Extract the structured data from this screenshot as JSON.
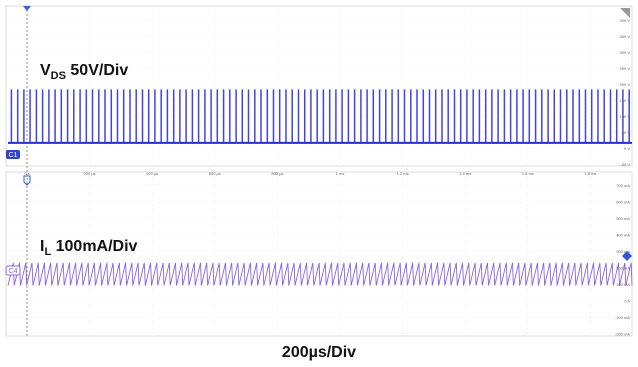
{
  "captions": {
    "vds_main": "V",
    "vds_sub": "DS",
    "vds_rest": " 50V/Div",
    "il_main": "I",
    "il_sub": "L",
    "il_rest": " 100mA/Div",
    "time": "200µs/Div"
  },
  "channels": {
    "top": {
      "marker": "C1",
      "color": "#4444dd"
    },
    "bottom": {
      "marker": "C4",
      "color": "#8866dd"
    }
  },
  "axes": {
    "time_ticks": [
      "0 s",
      "200 µs",
      "400 µs",
      "600 µs",
      "800 µs",
      "1 ms",
      "1.2 ms",
      "1.4 ms",
      "1.6 ms",
      "1.8 ms"
    ],
    "top_right_ticks": [
      "400 V",
      "350 V",
      "300 V",
      "250 V",
      "200 V",
      "150 V",
      "100 V",
      "50 V",
      "0 V",
      "-50 V"
    ],
    "bottom_right_ticks": [
      "700 mA",
      "600 mA",
      "500 mA",
      "400 mA",
      "300 mA",
      "200 mA",
      "100 mA",
      "0 A",
      "-100 mA",
      "-200 mA"
    ]
  },
  "chart_data": [
    {
      "type": "line",
      "series": [
        {
          "name": "C1",
          "values": [
            0,
            155
          ]
        }
      ],
      "ylim": [
        -50,
        400
      ],
      "xlim": [
        0,
        2
      ],
      "note": "square pulse train ~0 V to ~155 V"
    },
    {
      "type": "line",
      "series": [
        {
          "name": "C4",
          "values": [
            80,
            220
          ]
        }
      ],
      "ylim": [
        -200,
        700
      ],
      "xlim": [
        0,
        2
      ],
      "note": "triangular ripple ~80 mA to ~220 mA"
    }
  ],
  "waveform": {
    "pulse_count": 100,
    "ripple_cycles": 100
  }
}
